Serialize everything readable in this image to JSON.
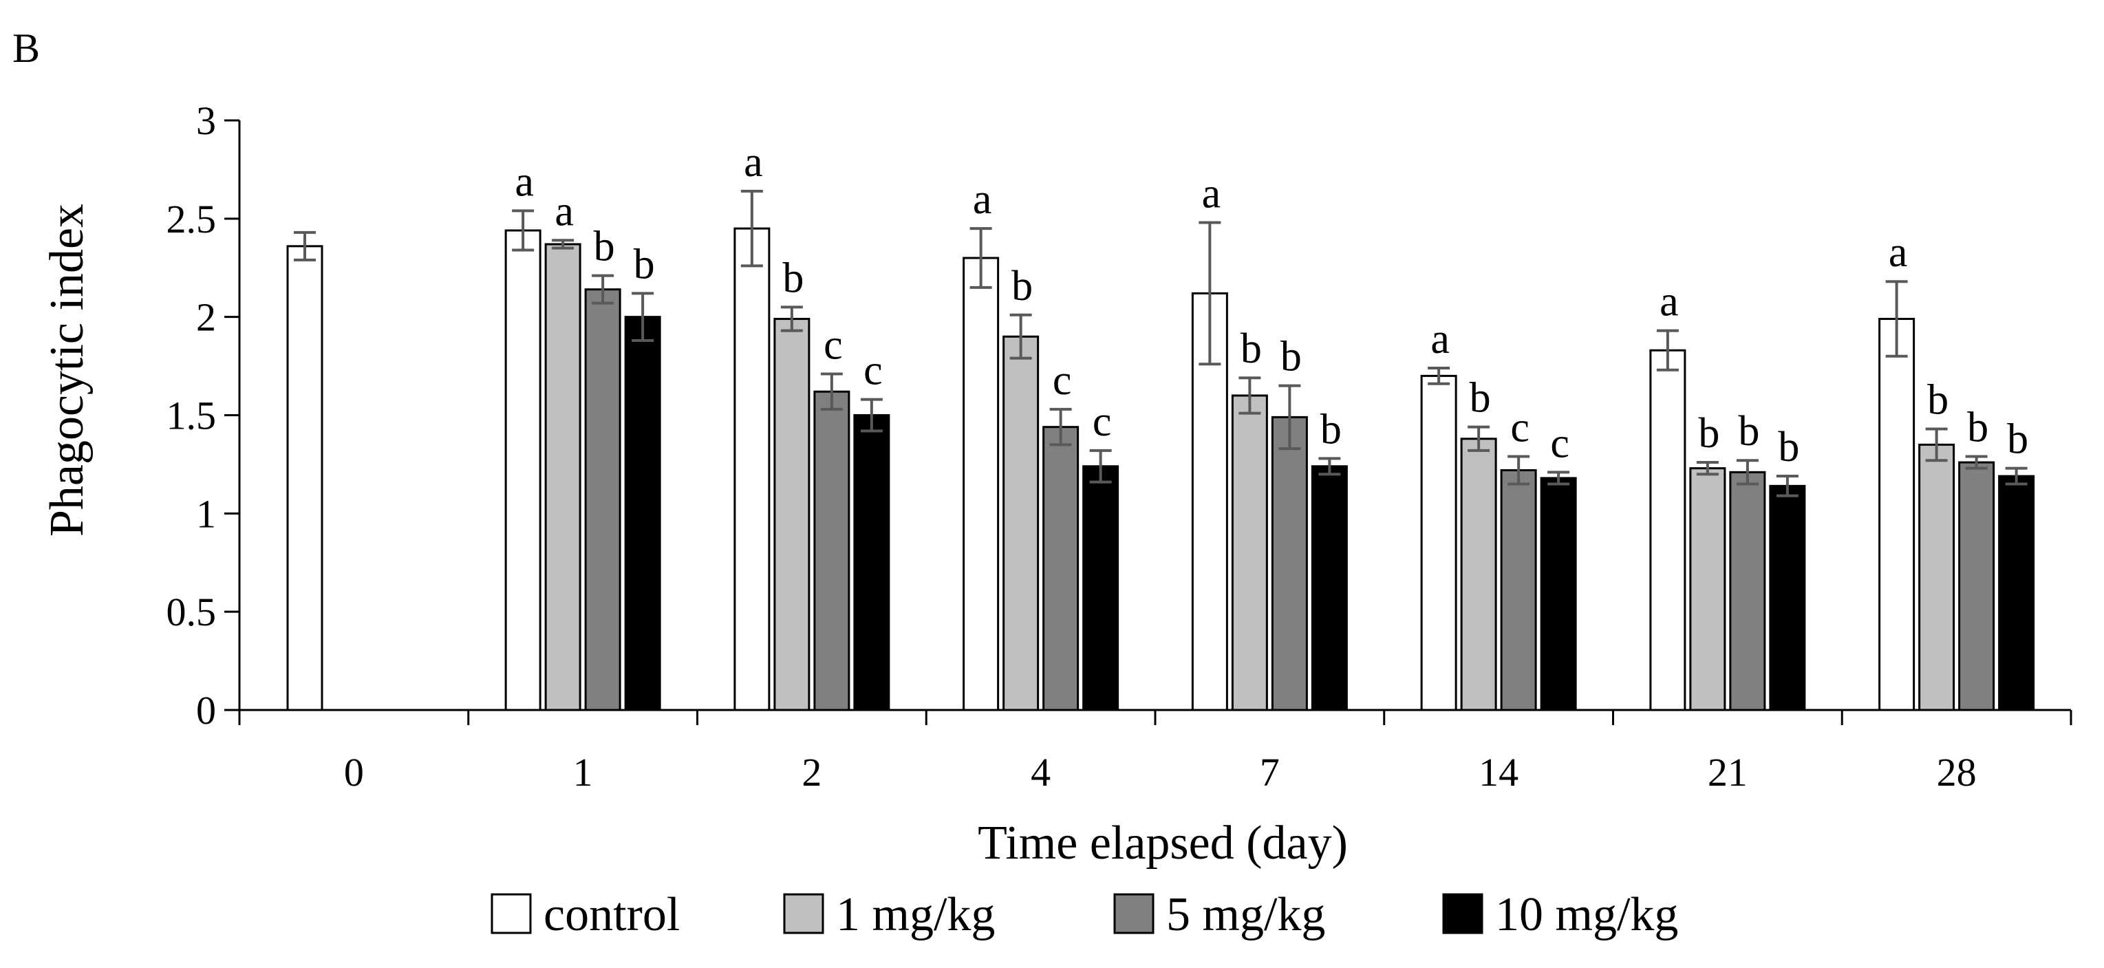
{
  "panel_label": "B",
  "chart_data": {
    "type": "bar",
    "title": "",
    "xlabel": "Time elapsed (day)",
    "ylabel": "Phagocytic index",
    "ylim": [
      0,
      3
    ],
    "yticks": [
      "0",
      "0.5",
      "1",
      "1.5",
      "2",
      "2.5",
      "3"
    ],
    "categories": [
      "0",
      "1",
      "2",
      "4",
      "7",
      "14",
      "21",
      "28"
    ],
    "grid": false,
    "legend_position": "bottom",
    "series": [
      {
        "name": "control",
        "color": "#ffffff",
        "values": [
          2.36,
          2.44,
          2.45,
          2.3,
          2.12,
          1.7,
          1.83,
          1.99
        ],
        "errors": [
          0.07,
          0.1,
          0.19,
          0.15,
          0.36,
          0.04,
          0.1,
          0.19
        ],
        "labels": [
          "",
          "a",
          "a",
          "a",
          "a",
          "a",
          "a",
          "a"
        ]
      },
      {
        "name": "1 mg/kg",
        "color": "#c0c0c0",
        "values": [
          null,
          2.37,
          1.99,
          1.9,
          1.6,
          1.38,
          1.23,
          1.35
        ],
        "errors": [
          null,
          0.02,
          0.06,
          0.11,
          0.09,
          0.06,
          0.03,
          0.08
        ],
        "labels": [
          "",
          "a",
          "b",
          "b",
          "b",
          "b",
          "b",
          "b"
        ]
      },
      {
        "name": "5 mg/kg",
        "color": "#808080",
        "values": [
          null,
          2.14,
          1.62,
          1.44,
          1.49,
          1.22,
          1.21,
          1.26
        ],
        "errors": [
          null,
          0.07,
          0.09,
          0.09,
          0.16,
          0.07,
          0.06,
          0.03
        ],
        "labels": [
          "",
          "b",
          "c",
          "c",
          "b",
          "c",
          "b",
          "b"
        ]
      },
      {
        "name": "10 mg/kg",
        "color": "#000000",
        "values": [
          null,
          2.0,
          1.5,
          1.24,
          1.24,
          1.18,
          1.14,
          1.19
        ],
        "errors": [
          null,
          0.12,
          0.08,
          0.08,
          0.04,
          0.03,
          0.05,
          0.04
        ],
        "labels": [
          "",
          "b",
          "c",
          "c",
          "b",
          "c",
          "b",
          "b"
        ]
      }
    ],
    "error_bar_color": "#595959"
  }
}
